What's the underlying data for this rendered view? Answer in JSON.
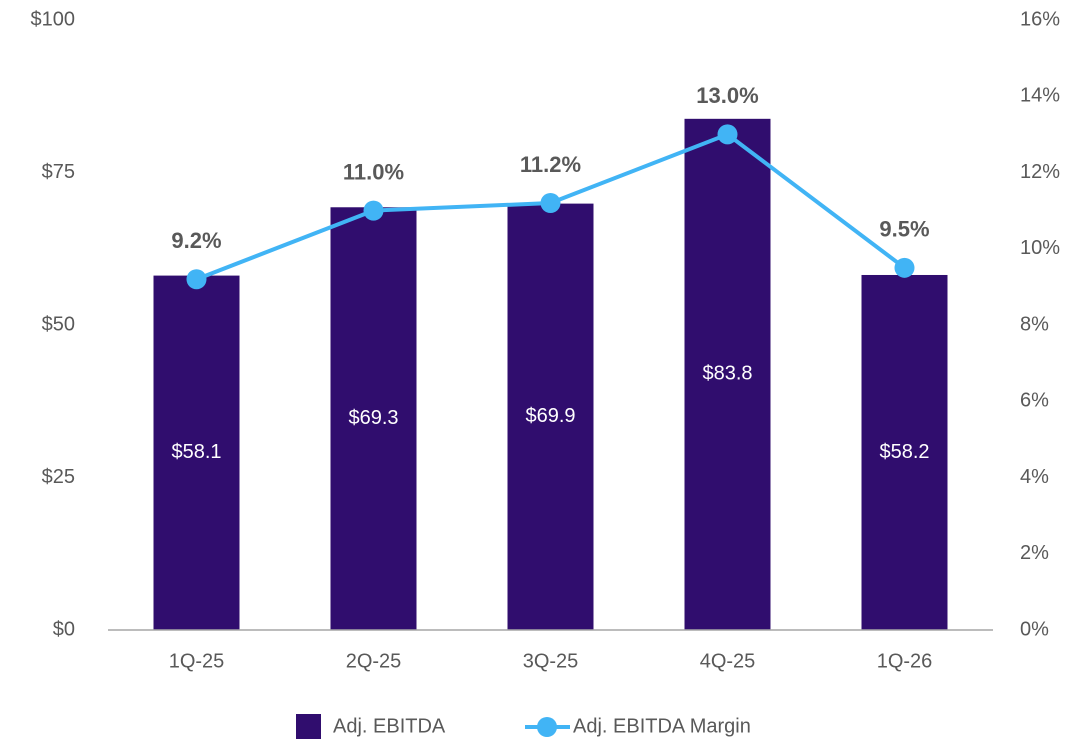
{
  "chart_data": {
    "type": "bar",
    "categories": [
      "1Q-25",
      "2Q-25",
      "3Q-25",
      "4Q-25",
      "1Q-26"
    ],
    "series": [
      {
        "name": "Adj. EBITDA",
        "type": "bar",
        "color": "#300d6e",
        "axis": "y",
        "values": [
          58.1,
          69.3,
          69.9,
          83.8,
          58.2
        ],
        "value_labels": [
          "$58.1",
          "$69.3",
          "$69.9",
          "$83.8",
          "$58.2"
        ]
      },
      {
        "name": "Adj. EBITDA Margin",
        "type": "line",
        "color": "#41b4f5",
        "axis": "y2",
        "values": [
          9.2,
          11.0,
          11.2,
          13.0,
          9.5
        ],
        "value_labels": [
          "9.2%",
          "11.0%",
          "11.2%",
          "13.0%",
          "9.5%"
        ]
      }
    ],
    "ylim": [
      0,
      100
    ],
    "yticks": [
      {
        "value": 0,
        "label": "$0"
      },
      {
        "value": 25,
        "label": "$25"
      },
      {
        "value": 50,
        "label": "$50"
      },
      {
        "value": 75,
        "label": "$75"
      },
      {
        "value": 100,
        "label": "$100"
      }
    ],
    "y2lim": [
      0,
      16
    ],
    "y2ticks": [
      {
        "value": 0,
        "label": "0%"
      },
      {
        "value": 2,
        "label": "2%"
      },
      {
        "value": 4,
        "label": "4%"
      },
      {
        "value": 6,
        "label": "6%"
      },
      {
        "value": 8,
        "label": "8%"
      },
      {
        "value": 10,
        "label": "10%"
      },
      {
        "value": 12,
        "label": "12%"
      },
      {
        "value": 14,
        "label": "14%"
      },
      {
        "value": 16,
        "label": "16%"
      }
    ],
    "grid": false,
    "legend": "bottom"
  }
}
